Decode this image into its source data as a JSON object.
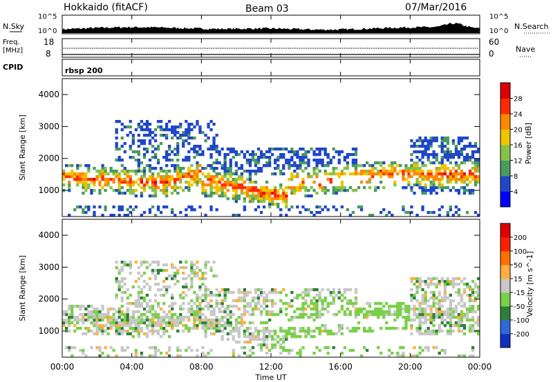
{
  "header": {
    "station": "Hokkaido (fitACF)",
    "beam": "Beam 03",
    "date": "07/Mar/2016"
  },
  "top_panels": {
    "nsky_label": "N.Sky",
    "nsky_ticks": [
      "10^5",
      "10^0"
    ],
    "nsearch_label": "N.Search",
    "nsearch_ticks": [
      "10^5",
      "10^0"
    ],
    "freq_label": "Freq.",
    "freq_unit": "[MHz]",
    "freq_ticks": [
      "18",
      "8"
    ],
    "nave_label": "Nave",
    "nave_ticks": [
      "60",
      "0"
    ],
    "cpid_label": "CPID",
    "cpid_value": "rbsp 200"
  },
  "chart_data": [
    {
      "type": "heatmap",
      "name": "power",
      "ylabel": "Slant Range [km]",
      "yticks": [
        "4000",
        "3000",
        "2000",
        "1000"
      ],
      "ylim": [
        180,
        4500
      ],
      "colorbar_label": "Power [dB]",
      "colorbar_ticks": [
        "28",
        "24",
        "20",
        "16",
        "12",
        "8",
        "4"
      ],
      "colors": [
        "#0000ff",
        "#2046c8",
        "#4a9a60",
        "#86c24a",
        "#f0c400",
        "#ff8800",
        "#ff2a00",
        "#dd0000"
      ]
    },
    {
      "type": "heatmap",
      "name": "velocity",
      "ylabel": "Slant Range [km]",
      "yticks": [
        "4000",
        "3000",
        "2000",
        "1000"
      ],
      "ylim": [
        180,
        4500
      ],
      "colorbar_label": "Velocity [m s^-1]",
      "colorbar_ticks": [
        "200",
        "100",
        "50",
        "15",
        "-15",
        "-50",
        "-100",
        "-200"
      ],
      "colors": [
        "#1030c0",
        "#2c6ad8",
        "#2e7f3a",
        "#7ad04a",
        "#c8c8c8",
        "#ffb040",
        "#ff7000",
        "#ff2000",
        "#e00000"
      ]
    }
  ],
  "xaxis": {
    "label": "Time UT",
    "ticks": [
      "00:00",
      "04:00",
      "08:00",
      "12:00",
      "16:00",
      "20:00",
      "00:00"
    ],
    "range_hours": [
      0,
      24
    ]
  }
}
